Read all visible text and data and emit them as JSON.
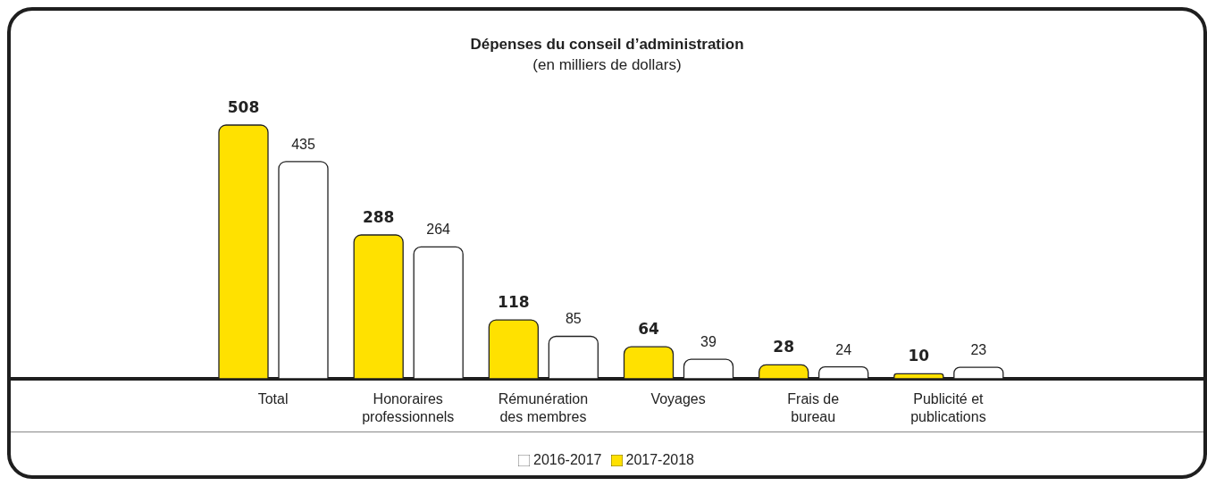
{
  "chart_data": {
    "type": "bar",
    "title": "Dépenses du conseil d’administration",
    "subtitle": "(en milliers de dollars)",
    "categories": [
      "Total",
      "Honoraires professionnels",
      "Rémunération des membres",
      "Voyages",
      "Frais de bureau",
      "Publicité et publications"
    ],
    "series": [
      {
        "name": "2017-2018",
        "color": "#ffe100",
        "values": [
          508,
          288,
          118,
          64,
          28,
          10
        ]
      },
      {
        "name": "2016-2017",
        "color": "#ffffff",
        "values": [
          435,
          264,
          85,
          39,
          24,
          23
        ]
      }
    ],
    "data_labels": true,
    "legend": "bottom",
    "grid": false
  }
}
